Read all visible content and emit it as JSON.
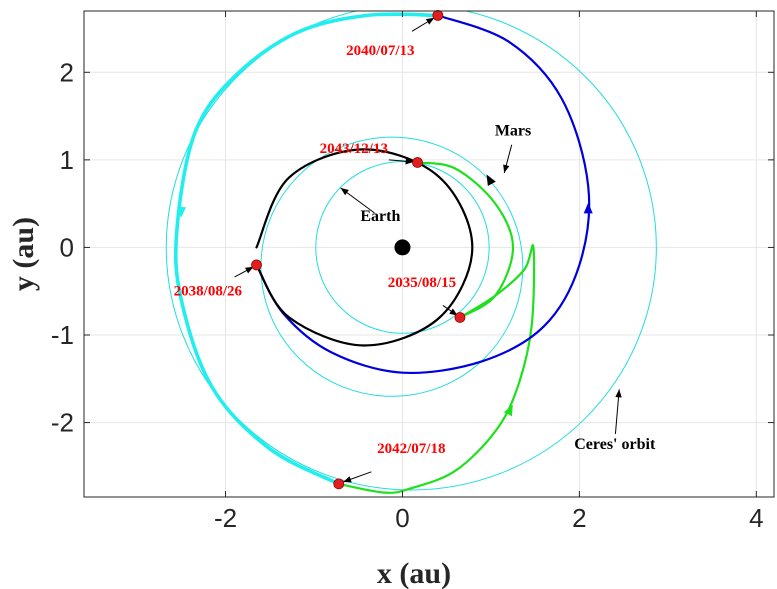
{
  "chart_data": {
    "type": "line",
    "xlabel": "x (au)",
    "ylabel": "y (au)",
    "xlim": [
      -3.6,
      4.2
    ],
    "ylim": [
      -2.85,
      2.7
    ],
    "xticks": [
      -2,
      0,
      2,
      4
    ],
    "yticks": [
      -2,
      -1,
      0,
      1,
      2
    ],
    "xtick_labels": [
      "-2",
      "0",
      "2",
      "4"
    ],
    "ytick_labels": [
      "-2",
      "-1",
      "0",
      "1",
      "2"
    ],
    "grid": true,
    "sun": {
      "x": 0,
      "y": 0
    },
    "reference_orbits": [
      {
        "body": "earth",
        "type": "circle",
        "cx": 0,
        "cy": 0,
        "r": 0.98,
        "color": "#22dddd"
      },
      {
        "body": "mars",
        "type": "circle",
        "cx": -0.12,
        "cy": -0.22,
        "r": 1.48,
        "color": "#22dddd"
      },
      {
        "body": "ceres",
        "type": "circle",
        "cx": 0.1,
        "cy": 0,
        "r": 2.77,
        "color": "#22dddd"
      }
    ],
    "transfer_legs": [
      {
        "color": "#1fe01f",
        "width": 2.2,
        "points": [
          [
            0.65,
            -0.8
          ],
          [
            1.05,
            -0.55
          ],
          [
            1.38,
            -0.25
          ],
          [
            1.48,
            0
          ],
          [
            1.46,
            -0.9
          ],
          [
            1.3,
            -1.6
          ],
          [
            1.05,
            -2.1
          ],
          [
            0.6,
            -2.55
          ],
          [
            0.1,
            -2.75
          ],
          [
            -0.2,
            -2.8
          ],
          [
            -0.72,
            -2.7
          ]
        ],
        "arrow": {
          "at": [
            1.22,
            -1.85
          ],
          "dir": [
            0.45,
            0.9
          ]
        }
      },
      {
        "color": "#22eeee",
        "width": 3.6,
        "points": [
          [
            -0.72,
            -2.7
          ],
          [
            -1.5,
            -2.3
          ],
          [
            -2.15,
            -1.6
          ],
          [
            -2.5,
            -0.6
          ],
          [
            -2.55,
            0.2
          ],
          [
            -2.35,
            1.3
          ],
          [
            -1.9,
            1.95
          ],
          [
            -1.2,
            2.45
          ],
          [
            -0.4,
            2.65
          ],
          [
            0.4,
            2.65
          ]
        ],
        "arrow": {
          "at": [
            -2.5,
            0.4
          ],
          "dir": [
            -0.05,
            -1
          ]
        }
      },
      {
        "color": "#0000dd",
        "width": 2.2,
        "points": [
          [
            0.4,
            2.65
          ],
          [
            1.2,
            2.35
          ],
          [
            1.8,
            1.7
          ],
          [
            2.1,
            0.7
          ],
          [
            2.0,
            -0.2
          ],
          [
            1.6,
            -0.9
          ],
          [
            0.9,
            -1.3
          ],
          [
            0.0,
            -1.43
          ],
          [
            -0.8,
            -1.2
          ],
          [
            -1.35,
            -0.75
          ],
          [
            -1.65,
            -0.2
          ]
        ],
        "arrow": {
          "at": [
            2.1,
            0.45
          ],
          "dir": [
            0,
            1
          ]
        }
      },
      {
        "color": "#000000",
        "width": 2.2,
        "points": [
          [
            -1.65,
            -0.2
          ],
          [
            -1.28,
            -0.8
          ],
          [
            -0.43,
            -1.12
          ],
          [
            0.42,
            -0.8
          ],
          [
            0.79,
            0.0
          ],
          [
            0.42,
            0.8
          ],
          [
            -0.43,
            1.12
          ],
          [
            -1.28,
            0.8
          ],
          [
            -1.65,
            0.0
          ]
        ],
        "arrow": {
          "at": [
            0.98,
            0.78
          ],
          "dir": [
            -0.5,
            0.9
          ]
        }
      },
      {
        "color": "#1fe01f",
        "width": 2.2,
        "points": [
          [
            0.17,
            0.97
          ],
          [
            0.6,
            0.9
          ],
          [
            1.05,
            0.5
          ],
          [
            1.25,
            0.0
          ],
          [
            1.05,
            -0.55
          ],
          [
            0.65,
            -0.8
          ]
        ]
      }
    ],
    "events": [
      {
        "date": "2035/08/15",
        "x": 0.65,
        "y": -0.8,
        "label_x": 0.22,
        "label_y": -0.45
      },
      {
        "date": "2038/08/26",
        "x": -1.65,
        "y": -0.2,
        "label_x": -2.2,
        "label_y": -0.55
      },
      {
        "date": "2040/07/13",
        "x": 0.4,
        "y": 2.65,
        "label_x": -0.25,
        "label_y": 2.2
      },
      {
        "date": "2042/07/18",
        "x": -0.72,
        "y": -2.7,
        "label_x": 0.1,
        "label_y": -2.35
      },
      {
        "date": "2043/12/13",
        "x": 0.17,
        "y": 0.97,
        "label_x": -0.55,
        "label_y": 1.08
      }
    ],
    "annotations": [
      {
        "text": "Earth",
        "x": -0.25,
        "y": 0.3,
        "arrow_to": [
          -0.7,
          0.68
        ]
      },
      {
        "text": "Mars",
        "x": 1.25,
        "y": 1.28,
        "arrow_to": [
          1.15,
          0.85
        ]
      },
      {
        "text": "Ceres' orbit",
        "x": 2.4,
        "y": -2.3,
        "arrow_to": [
          2.45,
          -1.62
        ]
      }
    ]
  }
}
